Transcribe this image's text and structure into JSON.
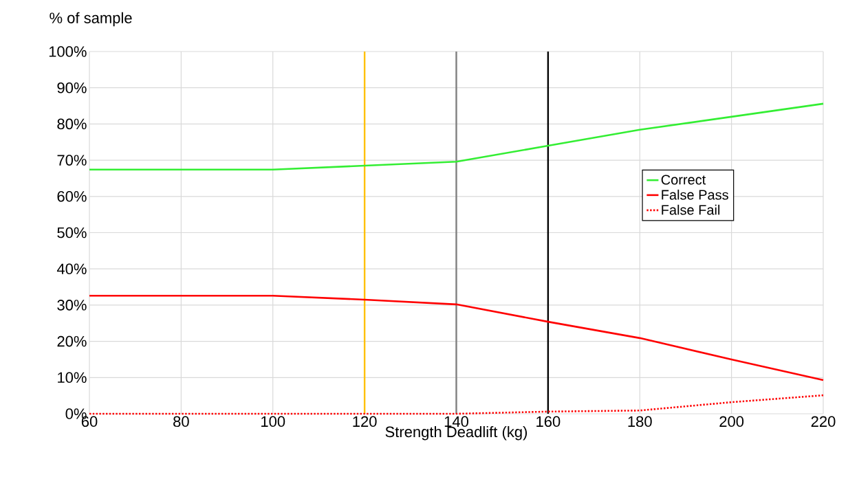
{
  "chart_data": {
    "type": "line",
    "xlabel": "Strength Deadlift (kg)",
    "ylabel": "% of sample",
    "x": [
      60,
      100,
      120,
      140,
      160,
      180,
      200,
      220
    ],
    "series": [
      {
        "name": "Correct",
        "color": "#33ee33",
        "line_style": "solid",
        "values": [
          67.4,
          67.4,
          68.5,
          69.6,
          74.0,
          78.4,
          82.0,
          85.6
        ]
      },
      {
        "name": "False Pass",
        "color": "#ff0000",
        "line_style": "solid",
        "values": [
          32.6,
          32.6,
          31.5,
          30.2,
          25.4,
          20.9,
          15.0,
          9.3
        ]
      },
      {
        "name": "False Fail",
        "color": "#ff0000",
        "line_style": "dotted",
        "values": [
          0,
          0,
          0,
          0,
          0.6,
          0.9,
          3.2,
          5.1
        ]
      }
    ],
    "xlim": [
      60,
      220
    ],
    "xticks": [
      60,
      80,
      100,
      120,
      140,
      160,
      180,
      200,
      220
    ],
    "ylim": [
      0,
      100
    ],
    "yticks": [
      {
        "value": 0,
        "label": "0%"
      },
      {
        "value": 10,
        "label": "10%"
      },
      {
        "value": 20,
        "label": "20%"
      },
      {
        "value": 30,
        "label": "30%"
      },
      {
        "value": 40,
        "label": "40%"
      },
      {
        "value": 50,
        "label": "50%"
      },
      {
        "value": 60,
        "label": "60%"
      },
      {
        "value": 70,
        "label": "70%"
      },
      {
        "value": 80,
        "label": "80%"
      },
      {
        "value": 90,
        "label": "90%"
      },
      {
        "value": 100,
        "label": "100%"
      }
    ],
    "ref_lines": [
      {
        "axis": "x",
        "value": 120,
        "color": "#ffc000"
      },
      {
        "axis": "x",
        "value": 140,
        "color": "#808080"
      },
      {
        "axis": "x",
        "value": 160,
        "color": "#000000"
      }
    ],
    "grid": true,
    "legend": "right",
    "marker": "none"
  }
}
